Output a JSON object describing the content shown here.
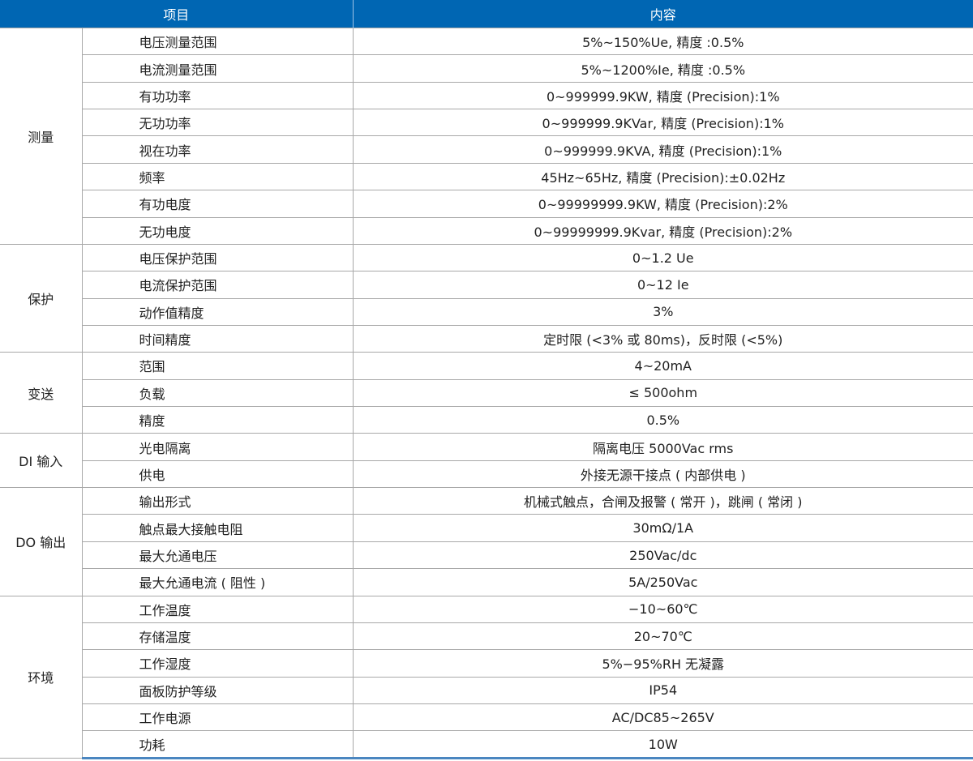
{
  "header": {
    "col_item": "项目",
    "col_content": "内容"
  },
  "colors": {
    "header_bg": "#0066b3",
    "border": "#a8a8a8"
  },
  "groups": [
    {
      "category": "测量",
      "rows": [
        {
          "item": "电压测量范围",
          "value": "5%~150%Ue, 精度 :0.5%"
        },
        {
          "item": "电流测量范围",
          "value": "5%~1200%Ie, 精度 :0.5%"
        },
        {
          "item": "有功功率",
          "value": "0~999999.9KW, 精度 (Precision):1%"
        },
        {
          "item": "无功功率",
          "value": "0~999999.9KVar, 精度 (Precision):1%"
        },
        {
          "item": "视在功率",
          "value": "0~999999.9KVA, 精度 (Precision):1%"
        },
        {
          "item": "频率",
          "value": "45Hz~65Hz, 精度 (Precision):±0.02Hz"
        },
        {
          "item": "有功电度",
          "value": "0~99999999.9KW, 精度 (Precision):2%"
        },
        {
          "item": "无功电度",
          "value": "0~99999999.9Kvar, 精度 (Precision):2%"
        }
      ]
    },
    {
      "category": "保护",
      "rows": [
        {
          "item": "电压保护范围",
          "value": "0~1.2 Ue"
        },
        {
          "item": "电流保护范围",
          "value": "0~12 Ie"
        },
        {
          "item": "动作值精度",
          "value": "3%"
        },
        {
          "item": "时间精度",
          "value": "定时限 (<3% 或 80ms)，反时限 (<5%)"
        }
      ]
    },
    {
      "category": "变送",
      "rows": [
        {
          "item": "范围",
          "value": "4~20mA"
        },
        {
          "item": "负载",
          "value": "≤ 500ohm"
        },
        {
          "item": "精度",
          "value": "0.5%"
        }
      ]
    },
    {
      "category": "DI 输入",
      "rows": [
        {
          "item": "光电隔离",
          "value": "隔离电压 5000Vac rms"
        },
        {
          "item": "供电",
          "value": "外接无源干接点 ( 内部供电 )"
        }
      ]
    },
    {
      "category": "DO 输出",
      "rows": [
        {
          "item": "输出形式",
          "value": "机械式触点，合闸及报警 ( 常开 )，跳闸 ( 常闭 )"
        },
        {
          "item": "触点最大接触电阻",
          "value": "30mΩ/1A"
        },
        {
          "item": "最大允通电压",
          "value": "250Vac/dc"
        },
        {
          "item": "最大允通电流 ( 阻性 )",
          "value": "5A/250Vac"
        }
      ]
    },
    {
      "category": "环境",
      "rows": [
        {
          "item": "工作温度",
          "value": "−10~60℃"
        },
        {
          "item": "存储温度",
          "value": "20~70℃"
        },
        {
          "item": "工作湿度",
          "value": "5%−95%RH 无凝露"
        },
        {
          "item": "面板防护等级",
          "value": "IP54"
        },
        {
          "item": "工作电源",
          "value": "AC/DC85~265V"
        },
        {
          "item": "功耗",
          "value": "10W"
        }
      ]
    }
  ]
}
